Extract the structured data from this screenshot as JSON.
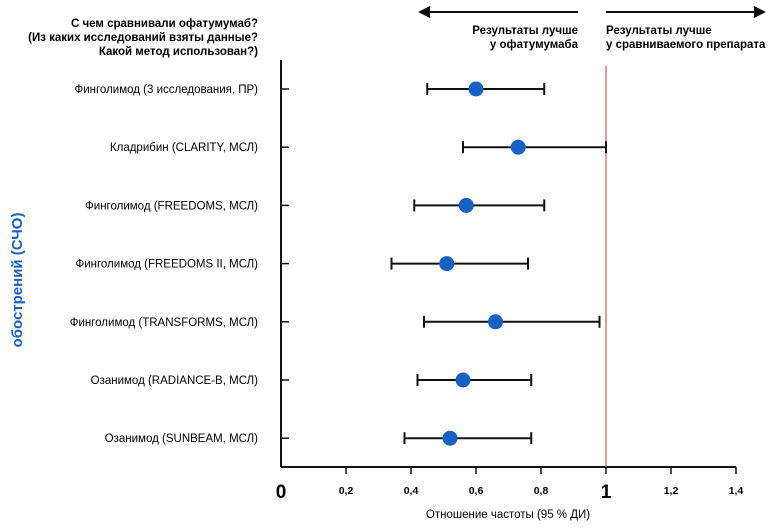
{
  "header": {
    "question_lines": [
      "С чем сравнивали офатумумаб?",
      "(Из каких исследований взяты данные?",
      "Какой метод использован?)"
    ],
    "left_direction_lines": [
      "Результаты лучше",
      "у офатумумаба"
    ],
    "right_direction_lines": [
      "Результаты лучше",
      "у сравниваемого препарата"
    ]
  },
  "side_label_lines": [
    "обострений (СЧО)"
  ],
  "chart_data": {
    "type": "scatter",
    "subtype": "forest-plot",
    "xlabel": "Отношение частоты (95 % ДИ)",
    "xlim": [
      0,
      1.4
    ],
    "x_ticks": [
      {
        "value": 0,
        "label": "0",
        "big": true
      },
      {
        "value": 0.2,
        "label": "0,2",
        "big": false
      },
      {
        "value": 0.4,
        "label": "0,4",
        "big": false
      },
      {
        "value": 0.6,
        "label": "0,6",
        "big": false
      },
      {
        "value": 0.8,
        "label": "0,8",
        "big": false
      },
      {
        "value": 1.0,
        "label": "1",
        "big": true
      },
      {
        "value": 1.2,
        "label": "1,2",
        "big": false
      },
      {
        "value": 1.4,
        "label": "1,4",
        "big": false
      }
    ],
    "reference_line": 1.0,
    "rows": [
      {
        "label": "Финголимод (3 исследования, ПР)",
        "estimate": 0.6,
        "lower": 0.45,
        "upper": 0.81
      },
      {
        "label": "Кладрибин (CLARITY, МСЛ)",
        "estimate": 0.73,
        "lower": 0.56,
        "upper": 1.0
      },
      {
        "label": "Финголимод (FREEDOMS, МСЛ)",
        "estimate": 0.57,
        "lower": 0.41,
        "upper": 0.81
      },
      {
        "label": "Финголимод (FREEDOMS II, МСЛ)",
        "estimate": 0.51,
        "lower": 0.34,
        "upper": 0.76
      },
      {
        "label": "Финголимод (TRANSFORMS, МСЛ)",
        "estimate": 0.66,
        "lower": 0.44,
        "upper": 0.98
      },
      {
        "label": "Озанимод (RADIANCE-B, МСЛ)",
        "estimate": 0.56,
        "lower": 0.42,
        "upper": 0.77
      },
      {
        "label": "Озанимод (SUNBEAM, МСЛ)",
        "estimate": 0.52,
        "lower": 0.38,
        "upper": 0.77
      }
    ],
    "colors": {
      "point": "#1760c4",
      "reference": "#d9534f",
      "axis": "#111111",
      "side_label": "#1760c4"
    }
  }
}
